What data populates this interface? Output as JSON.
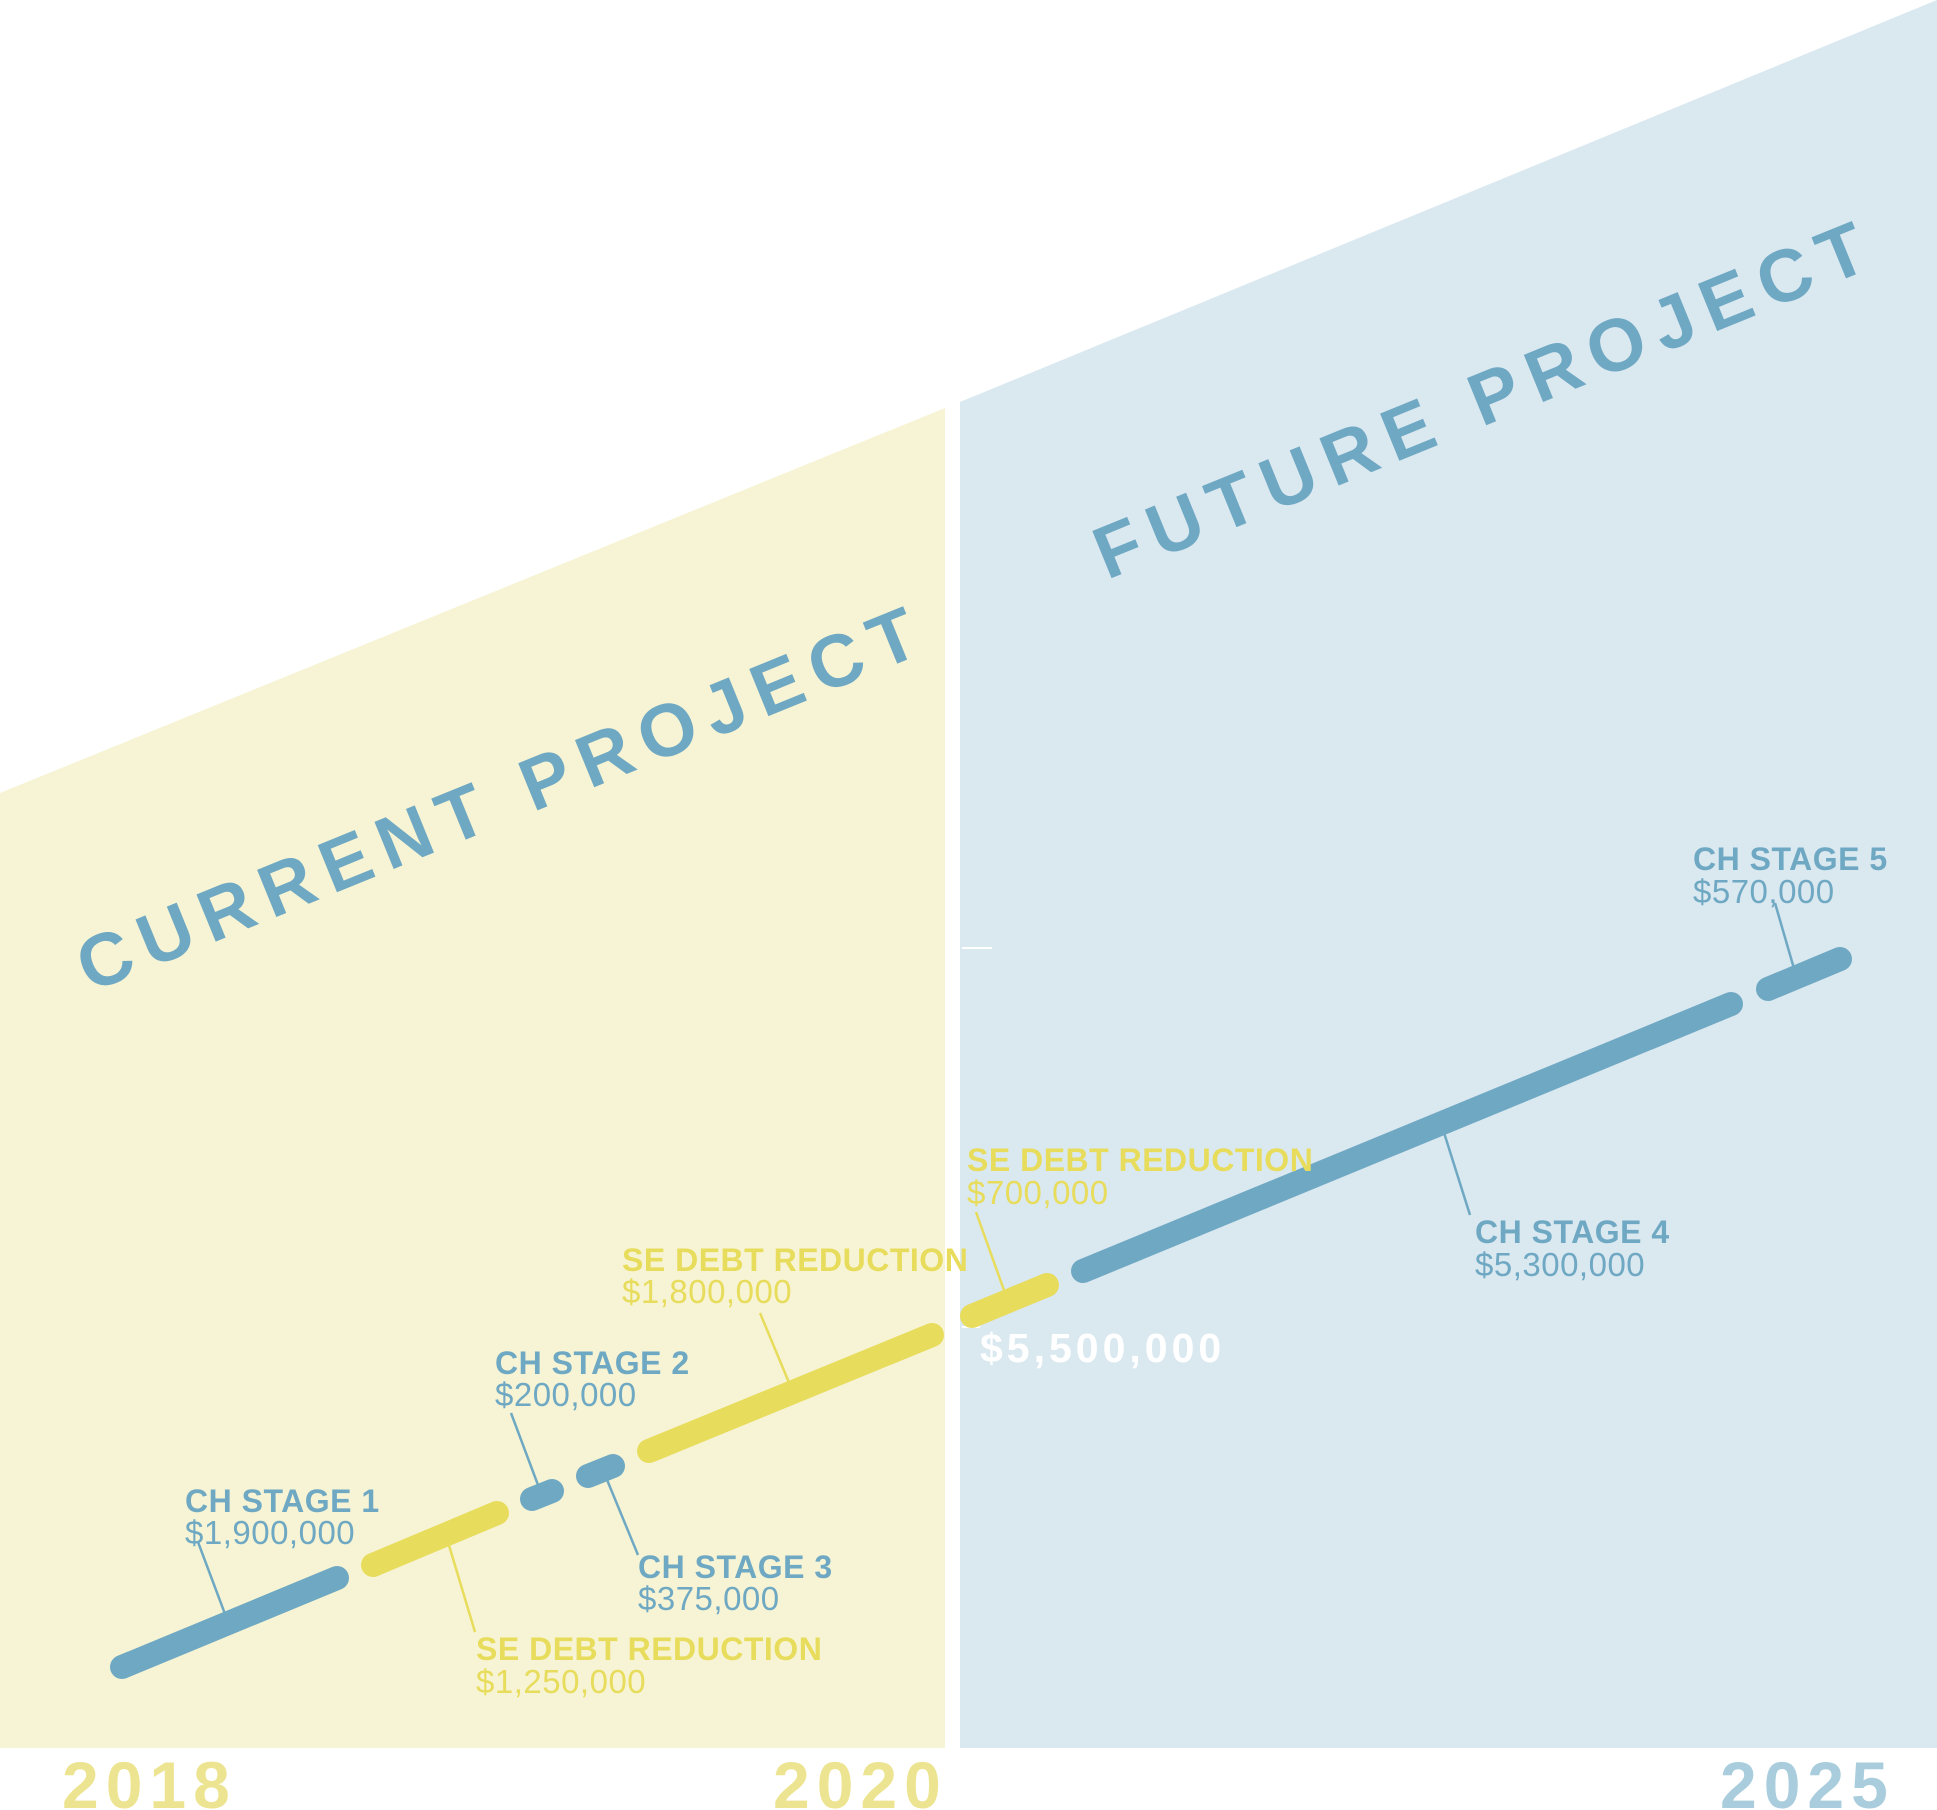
{
  "colors": {
    "blue": "#6fa8c3",
    "yellow": "#e8dc5c",
    "current_bg": "#f6f4d4",
    "future_bg": "#dae8f0",
    "year_yellow": "#ede491",
    "year_blue": "#a9cddd",
    "white": "#ffffff"
  },
  "sections": {
    "current": {
      "title": "CURRENT PROJECT"
    },
    "future": {
      "title": "FUTURE PROJECT"
    }
  },
  "years": {
    "start": "2018",
    "mid": "2020",
    "end": "2025"
  },
  "total": "$5,500,000",
  "segments": [
    {
      "title": "CH STAGE 1",
      "amount": "$1,900,000",
      "color": "blue"
    },
    {
      "title": "SE DEBT REDUCTION",
      "amount": "$1,250,000",
      "color": "yellow"
    },
    {
      "title": "CH STAGE 2",
      "amount": "$200,000",
      "color": "blue"
    },
    {
      "title": "CH STAGE 3",
      "amount": "$375,000",
      "color": "blue"
    },
    {
      "title": "SE DEBT REDUCTION",
      "amount": "$1,800,000",
      "color": "yellow"
    },
    {
      "title": "SE DEBT REDUCTION",
      "amount": "$700,000",
      "color": "yellow"
    },
    {
      "title": "CH STAGE 4",
      "amount": "$5,300,000",
      "color": "blue"
    },
    {
      "title": "CH STAGE 5",
      "amount": "$570,000",
      "color": "blue"
    }
  ]
}
